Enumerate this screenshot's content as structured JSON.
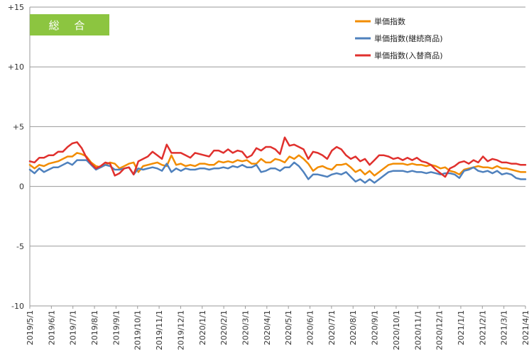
{
  "chart_data": {
    "type": "line",
    "badge_label": "総 合",
    "y_ticks": [
      "+15",
      "+10",
      "+5",
      "0",
      "-5",
      "-10"
    ],
    "ylim": [
      -10,
      15
    ],
    "y_tick_values": [
      15,
      10,
      5,
      0,
      -5,
      -10
    ],
    "x_ticks": [
      "2019/5/1",
      "2019/6/1",
      "2019/7/1",
      "2019/8/1",
      "2019/9/1",
      "2019/10/1",
      "2019/11/1",
      "2019/12/1",
      "2020/1/1",
      "2020/2/1",
      "2020/3/1",
      "2020/4/1",
      "2020/5/1",
      "2020/6/1",
      "2020/7/1",
      "2020/8/1",
      "2020/9/1",
      "2020/10/1",
      "2020/11/1",
      "2020/12/1",
      "2021/1/1",
      "2021/2/1",
      "2021/3/1",
      "2021/4/1"
    ],
    "legend_position": "top-right",
    "grid": "horizontal",
    "series": [
      {
        "name": "単価指数",
        "color": "#F28C00",
        "values": [
          1.8,
          1.5,
          1.8,
          1.7,
          1.9,
          2.0,
          2.1,
          2.3,
          2.5,
          2.5,
          2.8,
          2.7,
          2.5,
          2.0,
          1.7,
          1.6,
          1.8,
          2.0,
          1.9,
          1.5,
          1.7,
          1.9,
          2.0,
          1.2,
          1.7,
          1.8,
          1.9,
          2.0,
          1.8,
          1.7,
          2.6,
          1.8,
          1.9,
          1.7,
          1.8,
          1.7,
          1.9,
          1.9,
          1.8,
          1.8,
          2.1,
          2.0,
          2.1,
          2.0,
          2.2,
          2.1,
          2.2,
          1.9,
          1.9,
          2.3,
          2.0,
          2.0,
          2.3,
          2.2,
          2.0,
          2.5,
          2.3,
          2.6,
          2.3,
          1.9,
          1.3,
          1.6,
          1.7,
          1.5,
          1.4,
          1.8,
          1.8,
          1.9,
          1.6,
          1.2,
          1.4,
          1.0,
          1.3,
          0.9,
          1.2,
          1.5,
          1.8,
          1.9,
          1.9,
          1.9,
          1.8,
          1.9,
          1.8,
          1.8,
          1.7,
          1.8,
          1.7,
          1.5,
          1.6,
          1.3,
          1.2,
          1.0,
          1.4,
          1.5,
          1.6,
          1.7,
          1.6,
          1.6,
          1.5,
          1.7,
          1.5,
          1.5,
          1.4,
          1.3,
          1.2,
          1.2
        ]
      },
      {
        "name": "単価指数(継続商品)",
        "color": "#4F81BD",
        "values": [
          1.4,
          1.1,
          1.5,
          1.2,
          1.4,
          1.6,
          1.6,
          1.8,
          2.0,
          1.8,
          2.2,
          2.2,
          2.2,
          1.8,
          1.4,
          1.6,
          1.8,
          1.7,
          1.4,
          1.4,
          1.5,
          1.6,
          1.0,
          1.5,
          1.4,
          1.5,
          1.6,
          1.5,
          1.3,
          1.9,
          1.2,
          1.5,
          1.3,
          1.5,
          1.4,
          1.4,
          1.5,
          1.5,
          1.4,
          1.5,
          1.5,
          1.6,
          1.5,
          1.7,
          1.6,
          1.8,
          1.6,
          1.6,
          1.8,
          1.2,
          1.3,
          1.5,
          1.5,
          1.3,
          1.6,
          1.6,
          2.0,
          1.7,
          1.2,
          0.6,
          1.0,
          1.0,
          0.9,
          0.8,
          1.0,
          1.1,
          1.0,
          1.2,
          0.8,
          0.4,
          0.6,
          0.3,
          0.6,
          0.3,
          0.6,
          0.9,
          1.2,
          1.3,
          1.3,
          1.3,
          1.2,
          1.3,
          1.2,
          1.2,
          1.1,
          1.2,
          1.1,
          1.0,
          1.1,
          1.1,
          1.0,
          0.7,
          1.3,
          1.4,
          1.6,
          1.3,
          1.2,
          1.3,
          1.1,
          1.3,
          1.0,
          1.1,
          1.0,
          0.7,
          0.6,
          0.6
        ]
      },
      {
        "name": "単価指数(入替商品)",
        "color": "#E0302D",
        "values": [
          2.1,
          2.0,
          2.4,
          2.4,
          2.6,
          2.6,
          2.9,
          2.9,
          3.3,
          3.6,
          3.7,
          3.2,
          2.4,
          1.9,
          1.5,
          1.7,
          2.0,
          1.9,
          0.9,
          1.1,
          1.5,
          1.6,
          1.0,
          2.1,
          2.3,
          2.5,
          2.9,
          2.6,
          2.3,
          3.5,
          2.8,
          2.8,
          2.8,
          2.6,
          2.4,
          2.8,
          2.7,
          2.6,
          2.5,
          3.0,
          3.0,
          2.8,
          3.1,
          2.8,
          3.0,
          2.9,
          2.4,
          2.6,
          3.2,
          3.0,
          3.3,
          3.3,
          3.1,
          2.7,
          4.1,
          3.4,
          3.5,
          3.3,
          3.1,
          2.3,
          2.9,
          2.8,
          2.6,
          2.3,
          3.0,
          3.3,
          3.1,
          2.6,
          2.3,
          2.5,
          2.1,
          2.3,
          1.8,
          2.2,
          2.6,
          2.6,
          2.5,
          2.3,
          2.4,
          2.2,
          2.4,
          2.2,
          2.4,
          2.1,
          2.0,
          1.8,
          1.4,
          1.1,
          0.8,
          1.5,
          1.7,
          2.0,
          2.1,
          1.9,
          2.2,
          2.0,
          2.5,
          2.1,
          2.3,
          2.2,
          2.0,
          2.0,
          1.9,
          1.9,
          1.8,
          1.8
        ]
      }
    ]
  }
}
